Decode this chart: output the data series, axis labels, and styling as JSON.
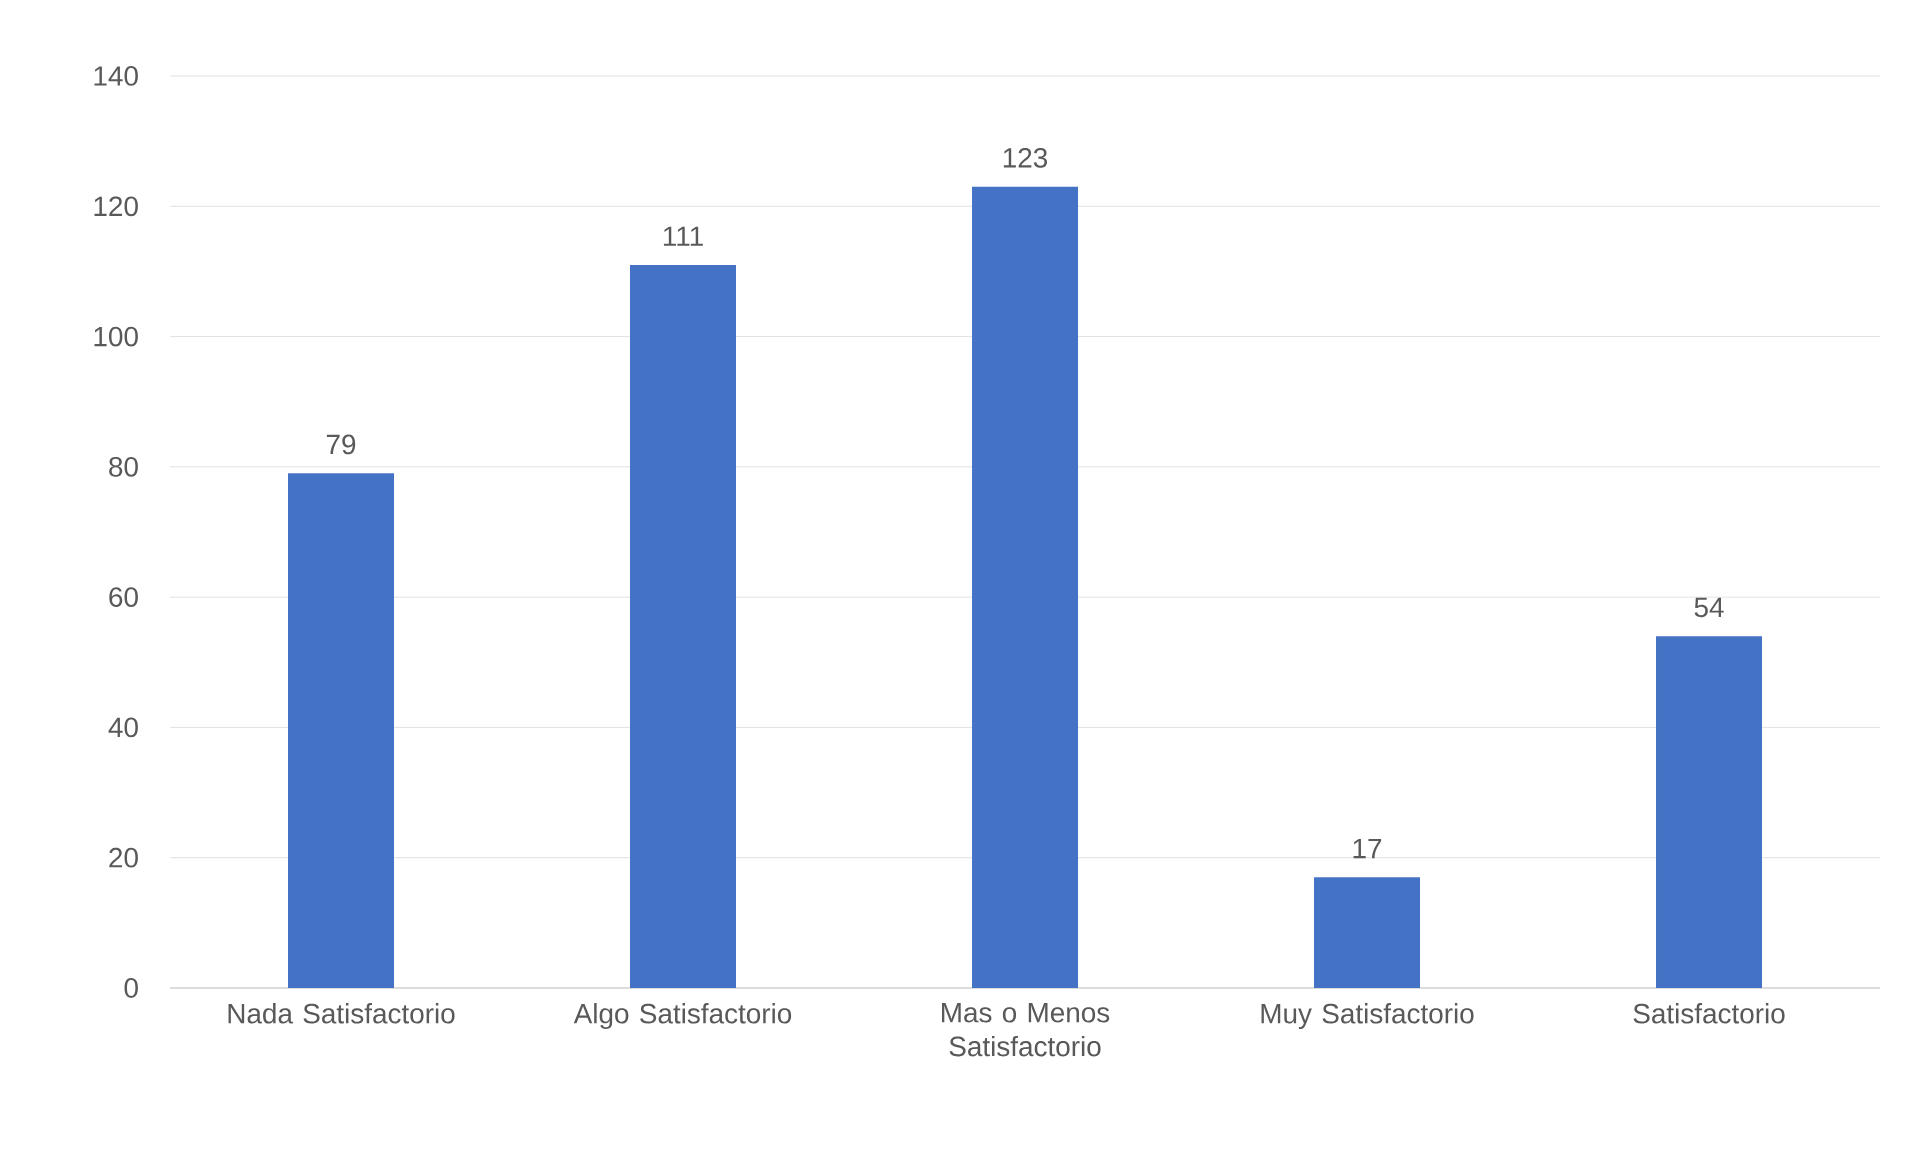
{
  "chart_data": {
    "type": "bar",
    "categories": [
      "Nada Satisfactorio",
      "Algo Satisfactorio",
      "Mas o Menos Satisfactorio",
      "Muy Satisfactorio",
      "Satisfactorio"
    ],
    "values": [
      79,
      111,
      123,
      17,
      54
    ],
    "color": "#4472c4",
    "ylim": [
      0,
      140
    ],
    "yticks": [
      0,
      20,
      40,
      60,
      80,
      100,
      120,
      140
    ],
    "grid": "y",
    "data_labels": true
  }
}
